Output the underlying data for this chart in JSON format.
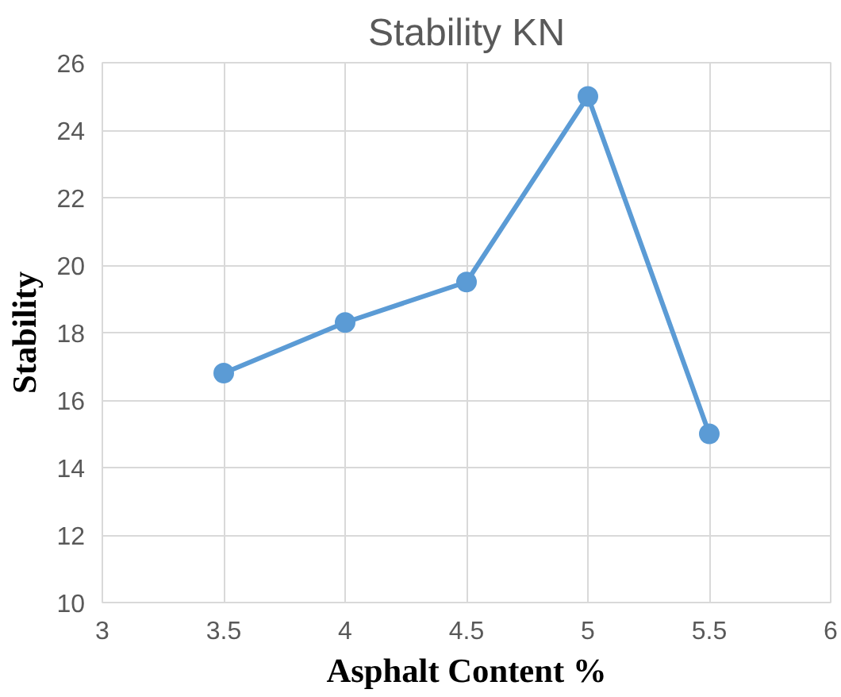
{
  "chart_data": {
    "type": "line",
    "title": "Stability KN",
    "xlabel": "Asphalt Content %",
    "ylabel": "Stability",
    "x": [
      3.5,
      4,
      4.5,
      5,
      5.5
    ],
    "series": [
      {
        "color": "#5b9bd5",
        "values": [
          16.8,
          18.3,
          19.5,
          25,
          15
        ]
      }
    ],
    "xlim": [
      3,
      6
    ],
    "xticks": [
      3,
      3.5,
      4,
      4.5,
      5,
      5.5,
      6
    ],
    "ylim": [
      10,
      26
    ],
    "yticks": [
      10,
      12,
      14,
      16,
      18,
      20,
      22,
      24,
      26
    ],
    "grid": true,
    "marker": "circle",
    "line_style": "solid"
  }
}
